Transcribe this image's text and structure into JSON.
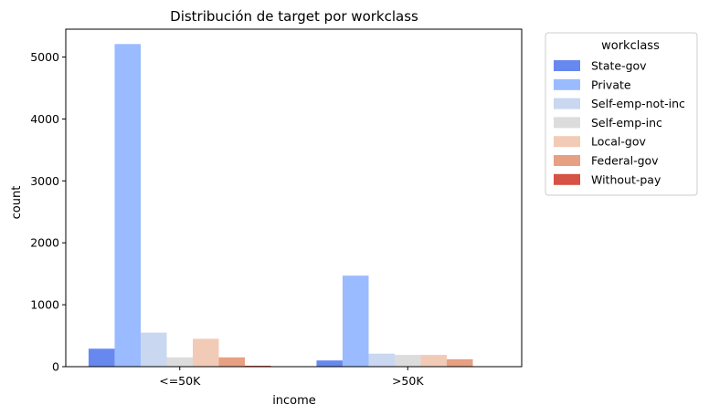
{
  "chart_data": {
    "type": "bar",
    "title": "Distribución de target por workclass",
    "xlabel": "income",
    "ylabel": "count",
    "categories": [
      "<=50K",
      ">50K"
    ],
    "ylim": [
      0,
      5450
    ],
    "yticks": [
      0,
      1000,
      2000,
      3000,
      4000,
      5000
    ],
    "grid": false,
    "legend": {
      "title": "workclass",
      "placement": "outside-right-top"
    },
    "series": [
      {
        "name": "State-gov",
        "color": "#6788ee",
        "values": [
          290,
          100
        ]
      },
      {
        "name": "Private",
        "color": "#9abbff",
        "values": [
          5210,
          1470
        ]
      },
      {
        "name": "Self-emp-not-inc",
        "color": "#c9d7f0",
        "values": [
          550,
          210
        ]
      },
      {
        "name": "Self-emp-inc",
        "color": "#dddcdc",
        "values": [
          150,
          190
        ]
      },
      {
        "name": "Local-gov",
        "color": "#f2cbb7",
        "values": [
          450,
          190
        ]
      },
      {
        "name": "Federal-gov",
        "color": "#e7a083",
        "values": [
          150,
          120
        ]
      },
      {
        "name": "Without-pay",
        "color": "#d65244",
        "values": [
          15,
          0
        ]
      }
    ]
  }
}
